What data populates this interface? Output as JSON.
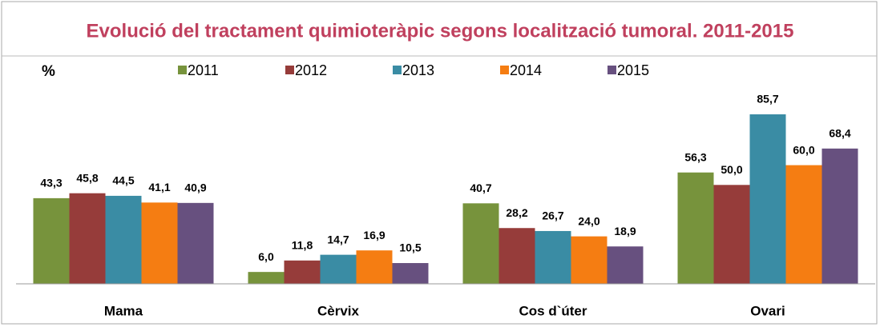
{
  "chart_data": {
    "type": "bar",
    "title": "Evolució del tractament quimioteràpic  segons localització tumoral. 2011-2015",
    "y_label": "%",
    "categories": [
      "Mama",
      "Cèrvix",
      "Cos d`úter",
      "Ovari"
    ],
    "series": [
      {
        "name": "2011",
        "color": "#77933c",
        "values": [
          43.3,
          6.0,
          40.7,
          56.3
        ],
        "value_labels": [
          "43,3",
          "6,0",
          "40,7",
          "56,3"
        ]
      },
      {
        "name": "2012",
        "color": "#963c3a",
        "values": [
          45.8,
          11.8,
          28.2,
          50.0
        ],
        "value_labels": [
          "45,8",
          "11,8",
          "28,2",
          "50,0"
        ]
      },
      {
        "name": "2013",
        "color": "#3a8ca4",
        "values": [
          44.5,
          14.7,
          26.7,
          85.7
        ],
        "value_labels": [
          "44,5",
          "14,7",
          "26,7",
          "85,7"
        ]
      },
      {
        "name": "2014",
        "color": "#f57d12",
        "values": [
          41.1,
          16.9,
          24.0,
          60.0
        ],
        "value_labels": [
          "41,1",
          "16,9",
          "24,0",
          "60,0"
        ]
      },
      {
        "name": "2015",
        "color": "#67507f",
        "values": [
          40.9,
          10.5,
          18.9,
          68.4
        ],
        "value_labels": [
          "40,9",
          "10,5",
          "18,9",
          "68,4"
        ]
      }
    ]
  }
}
